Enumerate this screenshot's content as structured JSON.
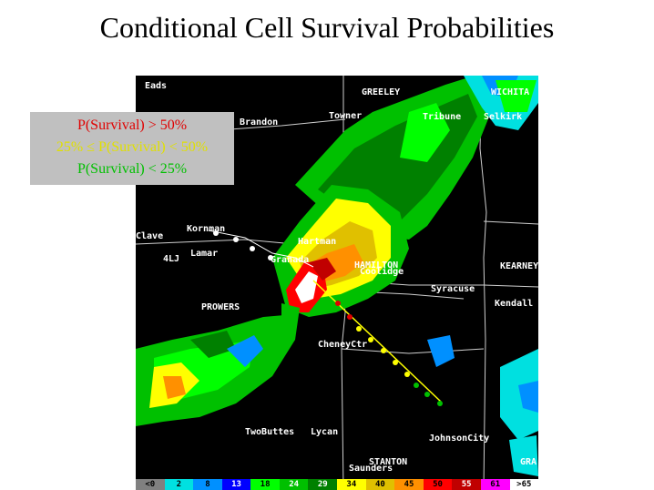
{
  "title": "Conditional Cell Survival Probabilities",
  "legend": {
    "high": {
      "text": "P(Survival) > 50%",
      "color": "#e00000"
    },
    "mid": {
      "text": "25% ≤ P(Survival) < 50%",
      "color": "#e0e000"
    },
    "low": {
      "text": "P(Survival) < 25%",
      "color": "#00c000"
    }
  },
  "towns": [
    "Eads",
    "GREELEY",
    "WICHITA",
    "Brandon",
    "Towner",
    "Tribune",
    "Selkirk",
    "Clave",
    "Kornman",
    "Lamar",
    "4LJ",
    "Hartman",
    "Granada",
    "HAMILTON",
    "Coolidge",
    "KEARNEY",
    "Syracuse",
    "Kendall",
    "PROWERS",
    "CheneyCtr",
    "TwoButtes",
    "Lycan",
    "JohnsonCity",
    "STANTON",
    "Saunders",
    "GRA"
  ],
  "scale": [
    {
      "label": "<0",
      "color": "#808080"
    },
    {
      "label": "2",
      "color": "#00e0e0"
    },
    {
      "label": "8",
      "color": "#0090ff"
    },
    {
      "label": "13",
      "color": "#0000ff"
    },
    {
      "label": "18",
      "color": "#00ff00"
    },
    {
      "label": "24",
      "color": "#00c000"
    },
    {
      "label": "29",
      "color": "#008000"
    },
    {
      "label": "34",
      "color": "#ffff00"
    },
    {
      "label": "40",
      "color": "#e0c000"
    },
    {
      "label": "45",
      "color": "#ff9000"
    },
    {
      "label": "50",
      "color": "#ff0000"
    },
    {
      "label": "55",
      "color": "#c00000"
    },
    {
      "label": "61",
      "color": "#ff00ff"
    },
    {
      "label": ">65",
      "color": "#ffffff"
    }
  ]
}
